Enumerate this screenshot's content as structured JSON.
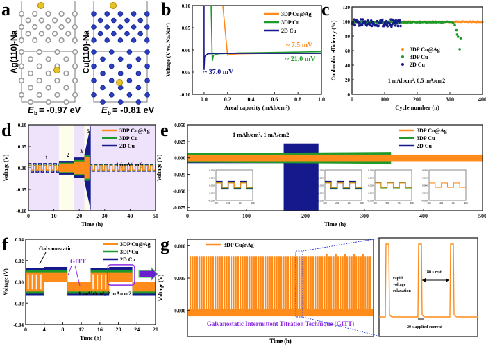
{
  "colors": {
    "cu_ag": "#ff8c1a",
    "cu3d": "#1f9a2a",
    "cu2d": "#15198c",
    "ag_atom": "#a8a8a8",
    "cu_atom": "#2b3fbf",
    "na_atom": "#e6c22a",
    "band_purple": "#efe3fb",
    "band_yellow": "#fdfdec",
    "gitt_text": "#8a2be2",
    "zoom_box": "#3344dd"
  },
  "panels": {
    "a": {
      "label": "a",
      "left_model": {
        "name": "Ag(110)-Na",
        "eb_text": "= -0.97 eV"
      },
      "right_model": {
        "name": "Cu(110)-Na",
        "eb_text": "= -0.81 eV"
      },
      "eb_symbol": "E",
      "eb_sub": "b"
    },
    "b": {
      "label": "b"
    },
    "c": {
      "label": "c"
    },
    "d": {
      "label": "d"
    },
    "e": {
      "label": "e"
    },
    "f": {
      "label": "f"
    },
    "g": {
      "label": "g"
    }
  },
  "chart_data": [
    {
      "id": "b",
      "type": "line",
      "title": "",
      "xlabel": "Areal capacity (mAh/cm2)",
      "ylabel": "Voltage (V vs. Na/Na+)",
      "xlim": [
        -0.1,
        1.0
      ],
      "ylim": [
        -0.1,
        0.1
      ],
      "xticks": [
        "0.0",
        "0.2",
        "0.4",
        "0.6",
        "0.8",
        "1.0"
      ],
      "yticks": [
        "-0.10",
        "-0.05",
        "0.00",
        "0.05",
        "0.10"
      ],
      "legend": [
        "3DP Cu@Ag",
        "3DP Cu",
        "2D Cu"
      ],
      "legend_position": "top-right",
      "series": [
        {
          "name": "3DP Cu@Ag",
          "x": [
            0.16,
            0.2,
            0.22,
            0.3,
            0.5,
            1.0
          ],
          "y": [
            0.1,
            -0.012,
            -0.01,
            -0.009,
            -0.008,
            -0.008
          ]
        },
        {
          "name": "3DP Cu",
          "x": [
            0.06,
            0.07,
            0.08,
            0.12,
            0.3,
            1.0
          ],
          "y": [
            0.1,
            -0.025,
            -0.012,
            -0.009,
            -0.007,
            -0.004
          ]
        },
        {
          "name": "2D Cu",
          "x": [
            0.0,
            0.0,
            0.005,
            0.03,
            0.1,
            0.3,
            1.0
          ],
          "y": [
            0.1,
            -0.045,
            -0.015,
            -0.009,
            -0.008,
            -0.008,
            -0.008
          ]
        }
      ],
      "annotations": [
        {
          "text": "~ 7.5 mV",
          "series": "3DP Cu@Ag"
        },
        {
          "text": "~ 21.0 mV",
          "series": "3DP Cu"
        },
        {
          "text": "~ 37.0 mV",
          "series": "2D Cu"
        }
      ]
    },
    {
      "id": "c",
      "type": "scatter",
      "xlabel": "Cycle number (n)",
      "ylabel": "Coulombic efficiency (%)",
      "xlim": [
        0,
        400
      ],
      "ylim": [
        0,
        120
      ],
      "xticks": [
        "0",
        "100",
        "200",
        "300",
        "400"
      ],
      "yticks": [
        "0",
        "20",
        "40",
        "60",
        "80",
        "100",
        "120"
      ],
      "legend": [
        "3DP Cu@Ag",
        "3DP Cu",
        "2D Cu"
      ],
      "legend_position": "center",
      "annotation": "1 mAh/cm2, 0.5 mA/cm2",
      "series": [
        {
          "name": "3DP Cu@Ag",
          "cycles": [
            1,
            400
          ],
          "ce_mean": 99.5
        },
        {
          "name": "3DP Cu",
          "cycles": [
            1,
            330
          ],
          "ce_mean": 99.0,
          "failure_points": [
            [
              310,
              98
            ],
            [
              315,
              95
            ],
            [
              320,
              88
            ],
            [
              322,
              82
            ],
            [
              325,
              79
            ],
            [
              330,
              62
            ],
            [
              333,
              77
            ]
          ]
        },
        {
          "name": "2D Cu",
          "cycles": [
            1,
            150
          ],
          "ce_mean": 98.0,
          "scatter_range": [
            89,
            106
          ]
        }
      ]
    },
    {
      "id": "d",
      "type": "line",
      "xlabel": "Time (h)",
      "ylabel": "Voltage (V)",
      "xlim": [
        0,
        50
      ],
      "ylim": [
        -0.1,
        0.1
      ],
      "xticks": [
        "0",
        "10",
        "20",
        "30",
        "40",
        "50"
      ],
      "yticks": [
        "-0.10",
        "-0.05",
        "0.00",
        "0.05",
        "0.10"
      ],
      "legend": [
        "3DP Cu@Ag",
        "3DP Cu",
        "2D Cu"
      ],
      "legend_position": "top-right",
      "rate_segments": [
        {
          "label": "1",
          "start": 0,
          "end": 12,
          "band": "purple"
        },
        {
          "label": "2",
          "start": 12,
          "end": 18,
          "band": "yellow"
        },
        {
          "label": "3",
          "start": 18,
          "end": 22,
          "band": "purple"
        },
        {
          "label": "5",
          "start": 22,
          "end": 24,
          "band": "yellow"
        },
        {
          "label": "1 (mA/cm2)",
          "start": 24,
          "end": 50,
          "band": "purple"
        }
      ],
      "amplitudes_V": {
        "3DP Cu@Ag": [
          0.005,
          0.01,
          0.015,
          0.025,
          0.005
        ],
        "3DP Cu": [
          0.006,
          0.012,
          0.018,
          0.03,
          0.006
        ],
        "2D Cu": [
          0.01,
          0.016,
          0.024,
          0.1,
          0.008
        ]
      }
    },
    {
      "id": "e",
      "type": "line",
      "xlabel": "Time (h)",
      "ylabel": "Voltage (V)",
      "xlim": [
        0,
        500
      ],
      "ylim": [
        -0.08,
        0.05
      ],
      "xticks": [
        "0",
        "100",
        "200",
        "300",
        "400",
        "500"
      ],
      "yticks": [
        "-0.075",
        "-0.050",
        "-0.025",
        "0.000",
        "0.025",
        "0.050"
      ],
      "legend": [
        "3DP Cu@Ag",
        "3DP Cu",
        "2D Cu"
      ],
      "legend_position": "top-right",
      "annotation": "1 mAh/cm2, 1 mA/cm2",
      "series": [
        {
          "name": "3DP Cu@Ag",
          "t_end": 500,
          "amplitude": 0.005
        },
        {
          "name": "3DP Cu",
          "t_end": 345,
          "amplitude": 0.007
        },
        {
          "name": "2D Cu",
          "t_end": 222,
          "amplitude": 0.008,
          "short_circuit_start": 163,
          "spike_high": 0.022
        }
      ],
      "insets": [
        {
          "xlim": [
            100,
            106
          ],
          "xticks": [
            "100",
            "102",
            "104",
            "106"
          ],
          "yticks": [
            "-0.050",
            "-0.025",
            "0.000",
            "0.025",
            "0.050"
          ],
          "series": [
            "2D Cu",
            "3DP Cu",
            "3DP Cu@Ag"
          ]
        },
        {
          "xlim": [
            200,
            206
          ],
          "xticks": [
            "200",
            "202",
            "204",
            "206"
          ],
          "yticks": [
            "-0.050",
            "-0.025",
            "0.000",
            "0.025",
            "0.050"
          ],
          "series": [
            "2D Cu",
            "3DP Cu",
            "3DP Cu@Ag"
          ]
        },
        {
          "xlim": [
            300,
            306
          ],
          "xticks": [
            "300",
            "302",
            "304",
            "306"
          ],
          "yticks": [
            "-0.050",
            "-0.025",
            "0.000",
            "0.025",
            "0.050"
          ],
          "series": [
            "3DP Cu",
            "3DP Cu@Ag"
          ]
        },
        {
          "xlim": [
            400,
            406
          ],
          "xticks": [
            "400",
            "402",
            "404",
            "406"
          ],
          "yticks": [
            "-0.050",
            "-0.025",
            "0.000",
            "0.025",
            "0.050"
          ],
          "series": [
            "3DP Cu@Ag"
          ]
        }
      ]
    },
    {
      "id": "f",
      "type": "line",
      "xlabel": "Time (h)",
      "ylabel": "Voltage (V)",
      "xlim": [
        0,
        28
      ],
      "ylim": [
        -0.04,
        0.04
      ],
      "xticks": [
        "0",
        "4",
        "8",
        "12",
        "16",
        "20",
        "24",
        "28"
      ],
      "yticks": [
        "-0.04",
        "-0.02",
        "0.00",
        "0.02",
        "0.04"
      ],
      "legend": [
        "3DP Cu@Ag",
        "3DP Cu",
        "2D Cu"
      ],
      "legend_position": "top-right",
      "annotations": [
        "Galvanostatic",
        "GITT",
        "1 mAh/cm2, 2 mA/cm2"
      ],
      "segments": [
        {
          "type": "galvanostatic",
          "start": 0,
          "end": 4
        },
        {
          "type": "gitt-strip",
          "start": 4,
          "end": 9,
          "sign": 1
        },
        {
          "type": "gitt-plate",
          "start": 9,
          "end": 14,
          "sign": -1
        },
        {
          "type": "galvanostatic",
          "start": 14,
          "end": 18
        },
        {
          "type": "gitt-strip",
          "start": 18,
          "end": 23,
          "sign": 1
        },
        {
          "type": "gitt-plate",
          "start": 23,
          "end": 28,
          "sign": -1
        }
      ]
    },
    {
      "id": "g",
      "type": "line",
      "xlabel": "Time (h)",
      "ylabel": "Voltage (V)",
      "ylim": [
        -0.004,
        0.011
      ],
      "yticks": [
        "0.000",
        "0.005",
        "0.010"
      ],
      "legend": [
        "3DP Cu@Ag"
      ],
      "legend_position": "top-left",
      "pulse_high_V": 0.0084,
      "rest_V": -0.0009,
      "pulse_count": 80,
      "annotation": "Galvanostatic Intermittent Titration Technique (GITT)",
      "zoom_annotations": [
        "rapid voltage relaxation",
        "180 s rest",
        "20 s applied current"
      ]
    }
  ]
}
